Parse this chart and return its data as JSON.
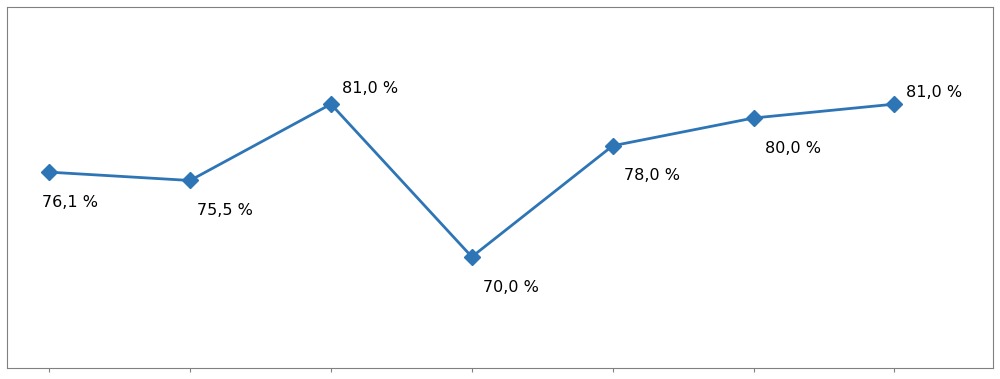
{
  "x_values": [
    0,
    1,
    2,
    3,
    4,
    5,
    6
  ],
  "y_values": [
    76.1,
    75.5,
    81.0,
    70.0,
    78.0,
    80.0,
    81.0
  ],
  "labels": [
    "76,1 %",
    "75,5 %",
    "81,0 %",
    "70,0 %",
    "78,0 %",
    "80,0 %",
    "81,0 %"
  ],
  "label_offsets_x": [
    -0.05,
    0.05,
    0.08,
    0.08,
    0.08,
    0.08,
    0.08
  ],
  "label_offsets_y": [
    -2.5,
    -2.5,
    0.8,
    -2.5,
    -2.5,
    -2.5,
    0.5
  ],
  "line_color": "#2E75B6",
  "marker_color": "#2E75B6",
  "background_color": "#FFFFFF",
  "plot_bg_color": "#FFFFFF",
  "ylim": [
    62,
    88
  ],
  "xlim": [
    -0.3,
    6.7
  ],
  "ytick_step": 2,
  "grid_color": "#C0C0C0",
  "grid_linewidth": 0.8,
  "font_size": 11.5,
  "line_width": 2.0,
  "marker_size": 8,
  "border_color": "#808080"
}
